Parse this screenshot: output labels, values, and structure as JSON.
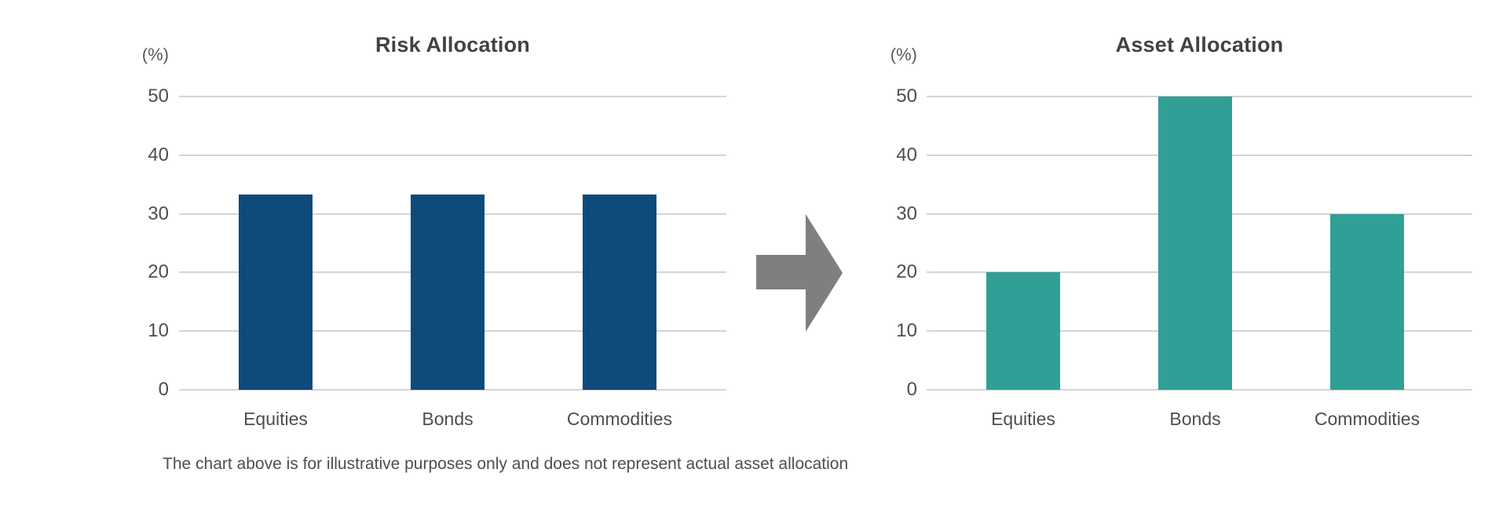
{
  "caption": "The chart above is for illustrative purposes only and does not represent actual asset allocation",
  "arrow": {
    "icon": "arrow-right",
    "color": "#7f7f7f"
  },
  "colors": {
    "background": "#ffffff",
    "gridline": "#d4d4d4",
    "tick_text": "#4d4e50",
    "title_text": "#414245",
    "risk_bar": "#0e4a7c",
    "asset_bar": "#30a096"
  },
  "chart_data": [
    {
      "type": "bar",
      "title": "Risk Allocation",
      "unit_label": "(%)",
      "categories": [
        "Equities",
        "Bonds",
        "Commodities"
      ],
      "values": [
        33.3,
        33.3,
        33.3
      ],
      "bar_color": "#0e4a7c",
      "xlabel": "",
      "ylabel": "(%)",
      "ylim": [
        0,
        50
      ],
      "yticks": [
        0,
        10,
        20,
        30,
        40,
        50
      ],
      "grid": true,
      "legend": "none"
    },
    {
      "type": "bar",
      "title": "Asset Allocation",
      "unit_label": "(%)",
      "categories": [
        "Equities",
        "Bonds",
        "Commodities"
      ],
      "values": [
        20,
        50,
        30
      ],
      "bar_color": "#30a096",
      "xlabel": "",
      "ylabel": "(%)",
      "ylim": [
        0,
        50
      ],
      "yticks": [
        0,
        10,
        20,
        30,
        40,
        50
      ],
      "grid": true,
      "legend": "none"
    }
  ]
}
